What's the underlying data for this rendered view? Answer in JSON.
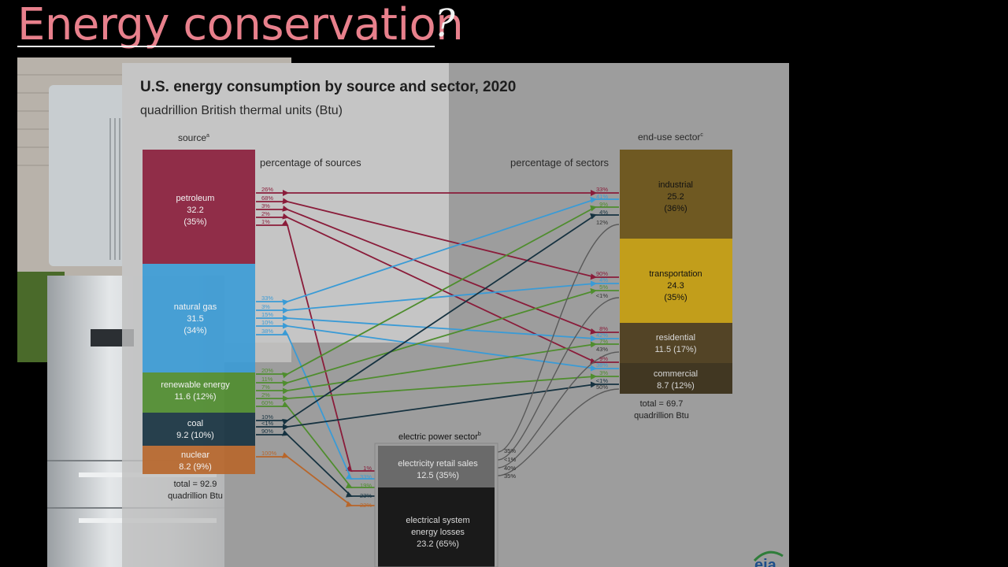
{
  "slide": {
    "title": "Energy conservation",
    "title_mark": "?"
  },
  "figure": {
    "title": "U.S. energy consumption by source and sector, 2020",
    "subtitle": "quadrillion British thermal units (Btu)",
    "source_heading": "source",
    "source_heading_sup": "a",
    "sector_heading": "end-use sector",
    "sector_heading_sup": "c",
    "electric_heading": "electric power sector",
    "electric_heading_sup": "b",
    "pct_sources_label": "percentage of sources",
    "pct_sectors_label": "percentage of sectors",
    "source_total": [
      "total = 92.9",
      "quadrillion Btu"
    ],
    "sector_total": [
      "total = 69.7",
      "quadrillion Btu"
    ],
    "logo_text": "eia"
  },
  "colors": {
    "petroleum": "#8a1c3a",
    "natural_gas": "#3a9bd6",
    "renewable": "#4f8d2e",
    "coal": "#163240",
    "nuclear": "#b8662a",
    "industrial": "#6b5418",
    "transportation": "#c69e10",
    "residential": "#4d3d1c",
    "commercial": "#3a2f18",
    "electric": "#6a6a6a",
    "losses": "#1a1a1a",
    "panel": "#c0c0c0",
    "title_pink": "#e8808c"
  },
  "sources": [
    {
      "id": "petroleum",
      "name": "petroleum",
      "value": "32.2",
      "share": "(35%)",
      "flows": [
        "26%",
        "68%",
        "3%",
        "2%",
        "1%"
      ]
    },
    {
      "id": "natural_gas",
      "name": "natural gas",
      "value": "31.5",
      "share": "(34%)",
      "flows": [
        "33%",
        "3%",
        "15%",
        "10%",
        "38%"
      ]
    },
    {
      "id": "renewable",
      "name": "renewable energy",
      "value": "11.6 (12%)",
      "share": "",
      "flows": [
        "20%",
        "11%",
        "7%",
        "2%",
        "60%"
      ]
    },
    {
      "id": "coal",
      "name": "coal",
      "value": "9.2 (10%)",
      "share": "",
      "flows": [
        "10%",
        "<1%",
        "90%"
      ]
    },
    {
      "id": "nuclear",
      "name": "nuclear",
      "value": "8.2 (9%)",
      "share": "",
      "flows": [
        "100%"
      ]
    }
  ],
  "sectors": [
    {
      "id": "industrial",
      "name": "industrial",
      "value": "25.2",
      "share": "(36%)",
      "flows": [
        "33%",
        "41%",
        "9%",
        "4%",
        "12%"
      ]
    },
    {
      "id": "transportation",
      "name": "transportation",
      "value": "24.3",
      "share": "(35%)",
      "flows": [
        "90%",
        "4%",
        "5%",
        "<1%"
      ]
    },
    {
      "id": "residential",
      "name": "residential",
      "value": "11.5 (17%)",
      "share": "",
      "flows": [
        "8%",
        "42%",
        "7%",
        "43%"
      ]
    },
    {
      "id": "commercial",
      "name": "commercial",
      "value": "8.7 (12%)",
      "share": "",
      "flows": [
        "9%",
        "38%",
        "3%",
        "<1%",
        "50%"
      ]
    }
  ],
  "electric": {
    "retail_name": "electricity retail sales",
    "retail_value": "12.5 (35%)",
    "losses_name": [
      "electrical system",
      "energy losses"
    ],
    "losses_value": "23.2 (65%)",
    "input_flows": [
      "1%",
      "33%",
      "19%",
      "23%",
      "22%"
    ],
    "output_flows": [
      "35%",
      "<1%",
      "40%",
      "35%"
    ]
  }
}
